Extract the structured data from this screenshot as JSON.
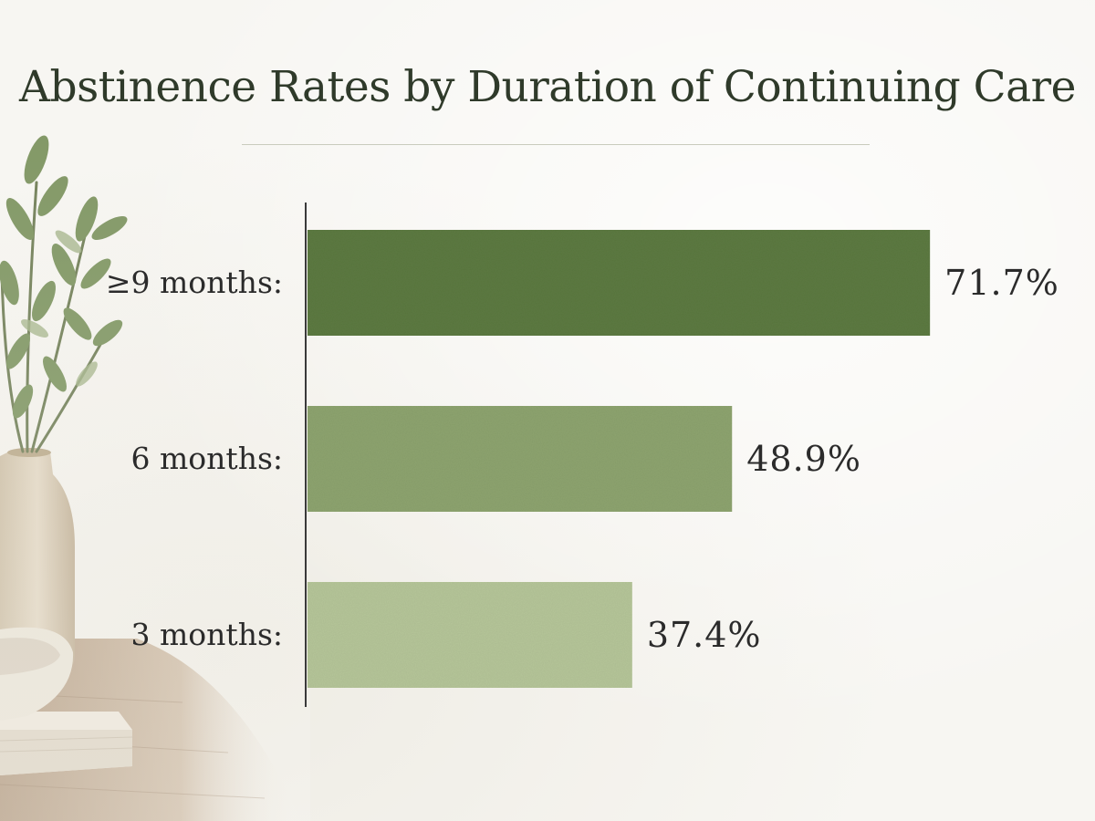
{
  "chart_data": {
    "type": "bar",
    "orientation": "horizontal",
    "title": "Abstinence Rates by Duration of Continuing Care",
    "categories": [
      "≥9 months:",
      "6 months:",
      "3 months:"
    ],
    "values": [
      71.7,
      48.9,
      37.4
    ],
    "value_labels": [
      "71.7%",
      "48.9%",
      "37.4%"
    ],
    "unit": "%",
    "xlim": [
      0,
      72
    ],
    "grid": false,
    "legend": "none",
    "colors": [
      "#5d7a43",
      "#8ea46f",
      "#b6c69a"
    ]
  }
}
